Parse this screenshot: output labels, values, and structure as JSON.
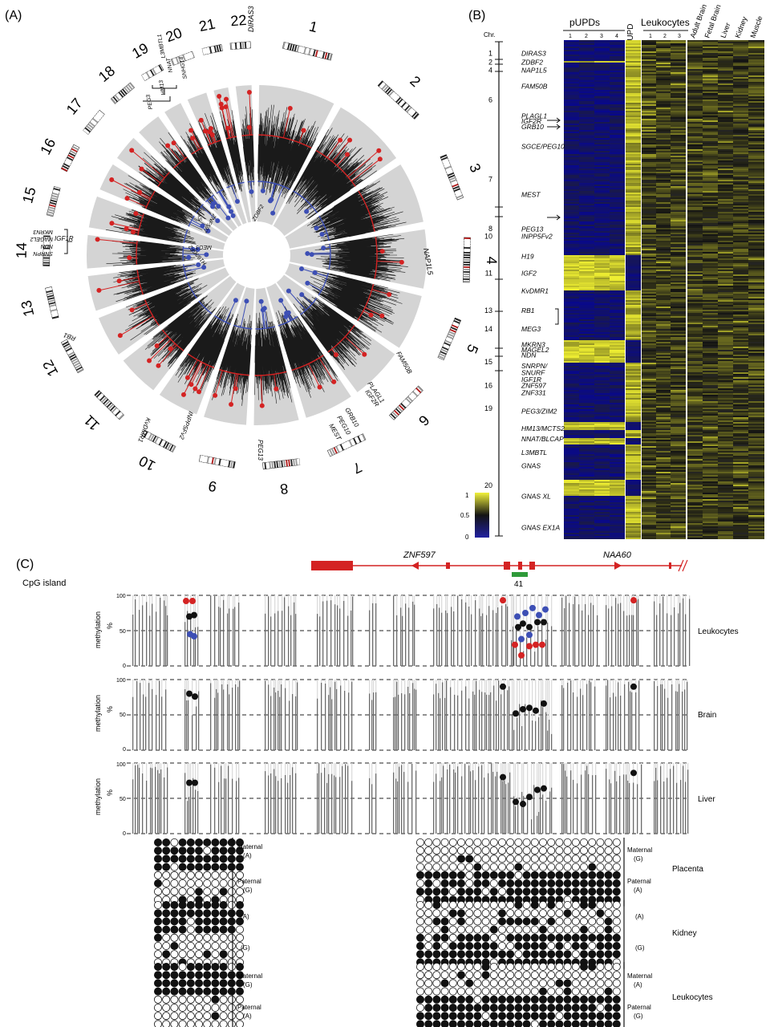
{
  "panels": {
    "a": {
      "label": "(A)",
      "chromosomes": [
        "1",
        "2",
        "3",
        "4",
        "5",
        "6",
        "7",
        "8",
        "9",
        "10",
        "11",
        "12",
        "13",
        "14",
        "15",
        "16",
        "17",
        "18",
        "19",
        "20",
        "21",
        "22"
      ],
      "outer_genes": [
        {
          "chr": "1",
          "text": "DIRAS3"
        },
        {
          "chr": "4",
          "text": "NAP1L5"
        },
        {
          "chr": "6",
          "text": "FAM50B"
        },
        {
          "chr": "6",
          "text": "PLAGL1"
        },
        {
          "chr": "6",
          "text": "IGF2R"
        },
        {
          "chr": "7",
          "text": "GRB10"
        },
        {
          "chr": "7",
          "text": "PEG10"
        },
        {
          "chr": "7",
          "text": "MEST"
        },
        {
          "chr": "8",
          "text": "PEG13"
        },
        {
          "chr": "10",
          "text": "INPP5Fv2"
        },
        {
          "chr": "11",
          "text": "KvDMR1"
        },
        {
          "chr": "13",
          "text": "RB1"
        },
        {
          "chr": "15",
          "text": "IGF1R"
        },
        {
          "chr": "16",
          "text": "ZNF597"
        },
        {
          "chr": "19",
          "text": "ZNF331"
        }
      ],
      "bracket_genes_15": [
        "SNRPN",
        "NDN",
        "MAGEL2",
        "MKRN3"
      ],
      "bracket_genes_20": [
        "L3MBTL1",
        "NNAT",
        "HM13",
        "PEG3"
      ],
      "bracket_genes_21": [
        "SNHG14"
      ],
      "inner_genes": [
        "ZDBF2",
        "GNAS",
        "ZNF597",
        "MEG3",
        "H19/IGF2"
      ]
    },
    "b": {
      "label": "(B)",
      "chr_header": "Chr.",
      "pupd_title": "pUPDs",
      "pupd_numbers": [
        "1",
        "2",
        "3",
        "4"
      ],
      "mupd_title": "mUPD",
      "leuko_title": "Leukocytes",
      "leuko_numbers": [
        "1",
        "2",
        "3"
      ],
      "tissue_labels": [
        "Adult Brain",
        "Fetal Brain",
        "Liver",
        "Kidney",
        "Muscle"
      ],
      "regions": [
        {
          "chr": "1",
          "gene": "DIRAS3",
          "frac": 0.012
        },
        {
          "chr": "2",
          "gene": "ZDBF2",
          "frac": 0.032
        },
        {
          "chr": "",
          "gene": "NAP1L5",
          "frac": 0.05
        },
        {
          "chr": "4",
          "gene": "",
          "frac": 0.05
        },
        {
          "chr": "",
          "gene": "FAM50B",
          "frac": 0.087
        },
        {
          "chr": "6",
          "gene": "",
          "frac": 0.118
        },
        {
          "chr": "",
          "gene": "PLAGL1",
          "frac": 0.155
        },
        {
          "chr": "",
          "gene": "IGF2R",
          "frac": 0.167
        },
        {
          "chr": "",
          "gene": "GRB10",
          "frac": 0.18
        },
        {
          "chr": "",
          "gene": "SGCE/PEG10",
          "frac": 0.225
        },
        {
          "chr": "7",
          "gene": "",
          "frac": 0.3
        },
        {
          "chr": "",
          "gene": "MEST",
          "frac": 0.335
        },
        {
          "chr": "8",
          "gene": "",
          "frac": 0.413
        },
        {
          "chr": "",
          "gene": "PEG13",
          "frac": 0.414
        },
        {
          "chr": "10",
          "gene": "INPP5Fv2",
          "frac": 0.43
        },
        {
          "chr": "",
          "gene": "H19",
          "frac": 0.476
        },
        {
          "chr": "11",
          "gene": "",
          "frac": 0.515
        },
        {
          "chr": "",
          "gene": "IGF2",
          "frac": 0.515
        },
        {
          "chr": "",
          "gene": "KvDMR1",
          "frac": 0.555
        },
        {
          "chr": "13",
          "gene": "RB1",
          "frac": 0.6
        },
        {
          "chr": "14",
          "gene": "MEG3",
          "frac": 0.642
        },
        {
          "chr": "",
          "gene": "MKRN3",
          "frac": 0.678
        },
        {
          "chr": "",
          "gene": "MAGEL2",
          "frac": 0.69
        },
        {
          "chr": "",
          "gene": "NDN",
          "frac": 0.702
        },
        {
          "chr": "15",
          "gene": "",
          "frac": 0.717
        },
        {
          "chr": "",
          "gene": "SNRPN/",
          "frac": 0.727
        },
        {
          "chr": "",
          "gene": "SNURF",
          "frac": 0.742
        },
        {
          "chr": "",
          "gene": "IGF1R",
          "frac": 0.758
        },
        {
          "chr": "16",
          "gene": "ZNF597",
          "frac": 0.772
        },
        {
          "chr": "",
          "gene": "ZNF331",
          "frac": 0.788
        },
        {
          "chr": "19",
          "gene": "",
          "frac": 0.824
        },
        {
          "chr": "",
          "gene": "PEG3/ZIM2",
          "frac": 0.83
        },
        {
          "chr": "",
          "gene": "HM13/MCTS2",
          "frac": 0.87
        },
        {
          "chr": "",
          "gene": "NNAT/BLCAP",
          "frac": 0.894
        },
        {
          "chr": "",
          "gene": "L3MBTL",
          "frac": 0.925
        },
        {
          "chr": "",
          "gene": "GNAS",
          "frac": 0.955
        },
        {
          "chr": "20",
          "gene": "",
          "frac": 1.0
        },
        {
          "chr": "",
          "gene": "GNAS XL",
          "frac": 1.025
        },
        {
          "chr": "",
          "gene": "GNAS EX1A",
          "frac": 1.096
        }
      ],
      "scale": {
        "max": "1",
        "mid": "0.5",
        "min": "0"
      }
    },
    "c": {
      "label": "(C)",
      "gene_left": "ZNF597",
      "gene_right": "NAA60",
      "cpg_label": "CpG island",
      "cpg_number": "41",
      "y_label": "methylation",
      "y_unit": "%",
      "y_ticks": [
        "100",
        "50",
        "0"
      ],
      "tracks": [
        "Leukocytes",
        "Brain",
        "Liver"
      ],
      "bisulfite": [
        {
          "tissue": "Placenta",
          "left": [
            "Maternal",
            "(A)",
            "Paternal",
            "(G)"
          ],
          "right": [
            "Maternal",
            "(G)",
            "Paternal",
            "(A)"
          ]
        },
        {
          "tissue": "Kidney",
          "left": [
            "(A)",
            "(G)"
          ],
          "right": [
            "(A)",
            "(G)"
          ]
        },
        {
          "tissue": "Leukocytes",
          "left": [
            "Maternal",
            "(G)",
            "Paternal",
            "(A)"
          ],
          "right": [
            "Maternal",
            "(A)",
            "Paternal",
            "(G)"
          ]
        }
      ]
    }
  },
  "colors": {
    "red": "#d42323",
    "blue": "#3d4fb5",
    "yellow": "#e8e83a",
    "navy": "#1e1e8c",
    "grey": "#d4d4d4",
    "bar": "#666666"
  }
}
